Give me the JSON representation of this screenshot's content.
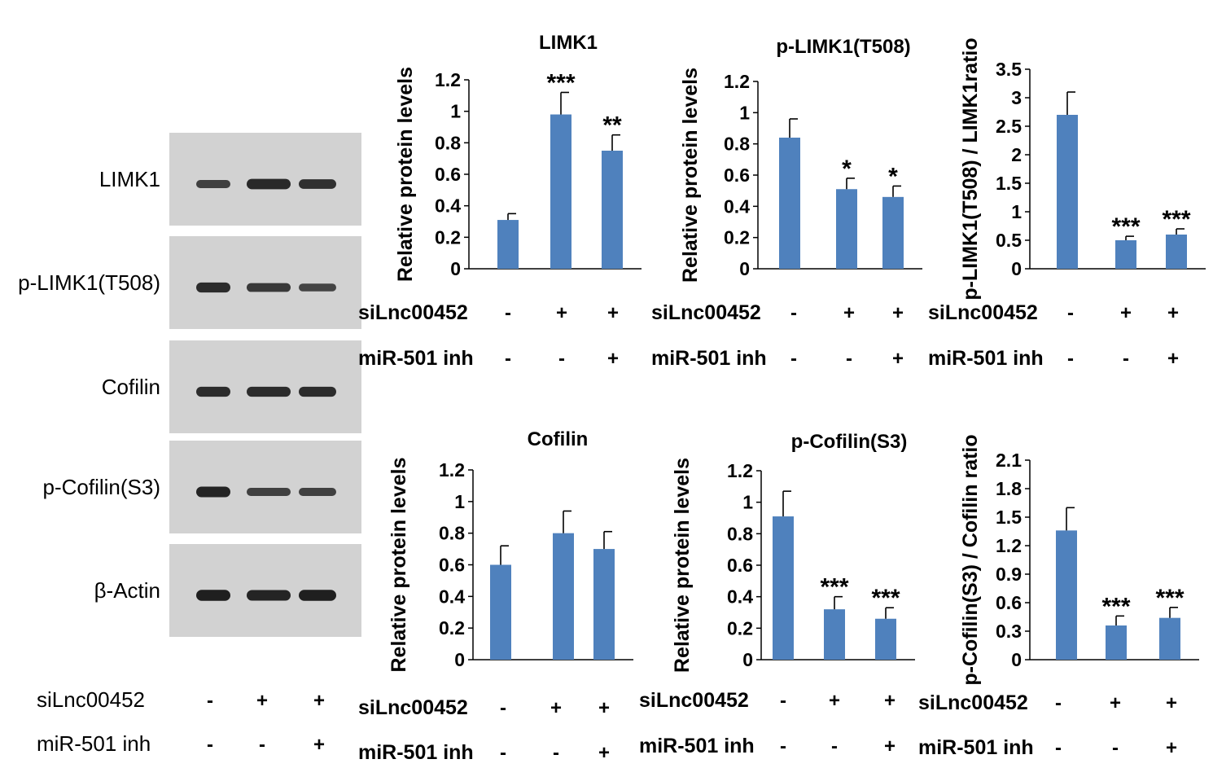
{
  "colors": {
    "bar": "#4f81bd",
    "blot_background": "#d2d2d2",
    "band": "#1c1c1c",
    "text": "#000000"
  },
  "blot": {
    "rows": [
      {
        "label": "LIMK1",
        "band_intensity": [
          0.55,
          0.85,
          0.75
        ]
      },
      {
        "label": "p-LIMK1(T508)",
        "band_intensity": [
          0.8,
          0.65,
          0.5
        ]
      },
      {
        "label": "Cofilin",
        "band_intensity": [
          0.8,
          0.8,
          0.8
        ]
      },
      {
        "label": "p-Cofilin(S3)",
        "band_intensity": [
          0.9,
          0.55,
          0.55
        ]
      },
      {
        "label": "β-Actin",
        "band_intensity": [
          0.95,
          0.9,
          0.95
        ]
      }
    ],
    "conditions": [
      {
        "label": "siLnc00452",
        "signs": [
          "-",
          "+",
          "+"
        ]
      },
      {
        "label": "miR-501 inh",
        "signs": [
          "-",
          "-",
          "+"
        ]
      }
    ]
  },
  "chart_data": [
    {
      "type": "bar",
      "title": "LIMK1",
      "ylabel": "Relative protein levels",
      "ylim": [
        0,
        1.2
      ],
      "yticks": [
        "0",
        "0.2",
        "0.4",
        "0.6",
        "0.8",
        "1",
        "1.2"
      ],
      "values": [
        0.31,
        0.98,
        0.75
      ],
      "errors": [
        0.04,
        0.14,
        0.1
      ],
      "significance": [
        "",
        "***",
        "**"
      ],
      "conditions": [
        {
          "label": "siLnc00452",
          "signs": [
            "-",
            "+",
            "+"
          ]
        },
        {
          "label": "miR-501 inh",
          "signs": [
            "-",
            "-",
            "+"
          ]
        }
      ]
    },
    {
      "type": "bar",
      "title": "p-LIMK1(T508)",
      "ylabel": "Relative protein levels",
      "ylim": [
        0,
        1.2
      ],
      "yticks": [
        "0",
        "0.2",
        "0.4",
        "0.6",
        "0.8",
        "1",
        "1.2"
      ],
      "values": [
        0.84,
        0.51,
        0.46
      ],
      "errors": [
        0.12,
        0.07,
        0.07
      ],
      "significance": [
        "",
        "*",
        "*"
      ],
      "conditions": [
        {
          "label": "siLnc00452",
          "signs": [
            "-",
            "+",
            "+"
          ]
        },
        {
          "label": "miR-501 inh",
          "signs": [
            "-",
            "-",
            "+"
          ]
        }
      ]
    },
    {
      "type": "bar",
      "title": "",
      "ylabel": "p-LIMK1(T508) / LIMK1ratio",
      "ylim": [
        0,
        3.5
      ],
      "yticks": [
        "0",
        "0.5",
        "1",
        "1.5",
        "2",
        "2.5",
        "3",
        "3.5"
      ],
      "values": [
        2.7,
        0.5,
        0.6
      ],
      "errors": [
        0.4,
        0.07,
        0.1
      ],
      "significance": [
        "",
        "***",
        "***"
      ],
      "conditions": [
        {
          "label": "siLnc00452",
          "signs": [
            "-",
            "+",
            "+"
          ]
        },
        {
          "label": "miR-501 inh",
          "signs": [
            "-",
            "-",
            "+"
          ]
        }
      ]
    },
    {
      "type": "bar",
      "title": "Cofilin",
      "ylabel": "Relative protein levels",
      "ylim": [
        0,
        1.2
      ],
      "yticks": [
        "0",
        "0.2",
        "0.4",
        "0.6",
        "0.8",
        "1",
        "1.2"
      ],
      "values": [
        0.6,
        0.8,
        0.7
      ],
      "errors": [
        0.12,
        0.14,
        0.11
      ],
      "significance": [
        "",
        "",
        ""
      ],
      "conditions": [
        {
          "label": "siLnc00452",
          "signs": [
            "-",
            "+",
            "+"
          ]
        },
        {
          "label": "miR-501 inh",
          "signs": [
            "-",
            "-",
            "+"
          ]
        }
      ]
    },
    {
      "type": "bar",
      "title": "p-Cofilin(S3)",
      "ylabel": "Relative protein levels",
      "ylim": [
        0,
        1.2
      ],
      "yticks": [
        "0",
        "0.2",
        "0.4",
        "0.6",
        "0.8",
        "1",
        "1.2"
      ],
      "values": [
        0.91,
        0.32,
        0.26
      ],
      "errors": [
        0.16,
        0.08,
        0.07
      ],
      "significance": [
        "",
        "***",
        "***"
      ],
      "conditions": [
        {
          "label": "siLnc00452",
          "signs": [
            "-",
            "+",
            "+"
          ]
        },
        {
          "label": "miR-501 inh",
          "signs": [
            "-",
            "-",
            "+"
          ]
        }
      ]
    },
    {
      "type": "bar",
      "title": "",
      "ylabel": "p-Cofilin(S3) / Cofilin ratio",
      "ylim": [
        0,
        2.1
      ],
      "yticks": [
        "0",
        "0.3",
        "0.6",
        "0.9",
        "1.2",
        "1.5",
        "1.8",
        "2.1"
      ],
      "values": [
        1.36,
        0.36,
        0.44
      ],
      "errors": [
        0.24,
        0.1,
        0.11
      ],
      "significance": [
        "",
        "***",
        "***"
      ],
      "conditions": [
        {
          "label": "siLnc00452",
          "signs": [
            "-",
            "+",
            "+"
          ]
        },
        {
          "label": "miR-501 inh",
          "signs": [
            "-",
            "-",
            "+"
          ]
        }
      ]
    }
  ]
}
